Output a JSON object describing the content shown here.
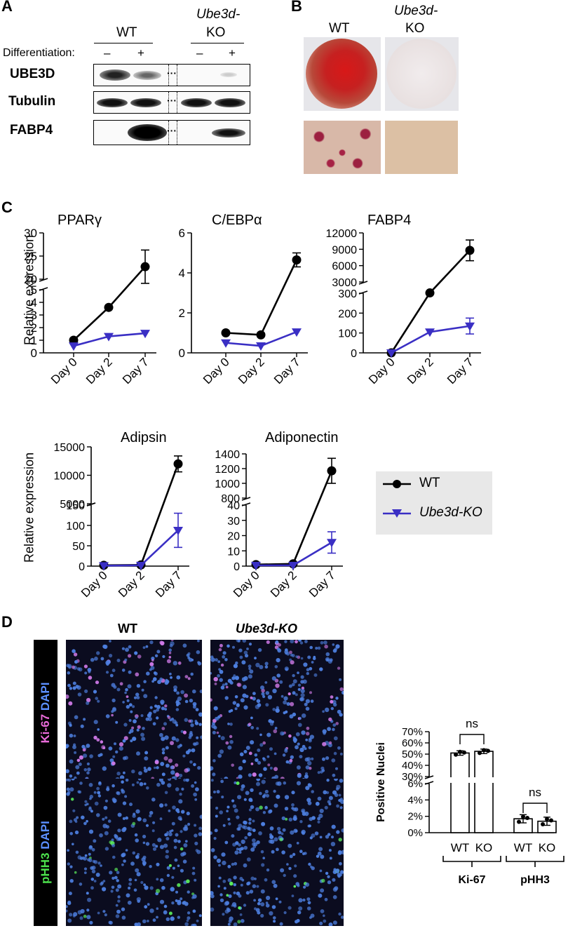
{
  "panels": {
    "a": "A",
    "b": "B",
    "c": "C",
    "d": "D"
  },
  "panelA": {
    "wt": "WT",
    "ko_line1": "Ube3d-",
    "ko_line2": "KO",
    "differentiation": "Differentiation:",
    "minus": "–",
    "plus": "+",
    "dots": "···",
    "rows": [
      "UBE3D",
      "Tubulin",
      "FABP4"
    ]
  },
  "panelB": {
    "wt": "WT",
    "ko_line1": "Ube3d-",
    "ko_line2": "KO"
  },
  "panelC": {
    "ylabel": "Relative expression",
    "x_ticks": [
      "Day 0",
      "Day 2",
      "Day 7"
    ],
    "legend": {
      "wt": "WT",
      "ko": "Ube3d-KO"
    },
    "colors": {
      "wt": "#000000",
      "ko": "#3a2fc4"
    }
  },
  "chart_data": [
    {
      "type": "line",
      "title": "PPARγ",
      "x": [
        "Day 0",
        "Day 2",
        "Day 7"
      ],
      "broken_y": true,
      "upper_ticks": [
        20,
        25,
        30
      ],
      "lower_ticks": [
        0,
        1,
        2,
        3,
        4,
        5
      ],
      "series": [
        {
          "name": "WT",
          "values": [
            1.0,
            3.6,
            22.7
          ],
          "err": [
            0,
            0,
            3.6
          ]
        },
        {
          "name": "Ube3d-KO",
          "values": [
            0.55,
            1.3,
            1.55
          ],
          "err": [
            0,
            0,
            0
          ]
        }
      ]
    },
    {
      "type": "line",
      "title": "C/EBPα",
      "x": [
        "Day 0",
        "Day 2",
        "Day 7"
      ],
      "broken_y": false,
      "ticks": [
        0,
        2,
        4,
        6
      ],
      "series": [
        {
          "name": "WT",
          "values": [
            1.0,
            0.9,
            4.65
          ],
          "err": [
            0,
            0,
            0.35
          ]
        },
        {
          "name": "Ube3d-KO",
          "values": [
            0.5,
            0.35,
            1.05
          ],
          "err": [
            0,
            0,
            0
          ]
        }
      ]
    },
    {
      "type": "line",
      "title": "FABP4",
      "x": [
        "Day 0",
        "Day 2",
        "Day 7"
      ],
      "broken_y": true,
      "upper_ticks": [
        3000,
        6000,
        9000,
        12000
      ],
      "lower_ticks": [
        0,
        100,
        200,
        300
      ],
      "series": [
        {
          "name": "WT",
          "values": [
            0,
            1000,
            8800
          ],
          "err": [
            0,
            0,
            1900
          ]
        },
        {
          "name": "Ube3d-KO",
          "values": [
            0,
            105,
            135
          ],
          "err": [
            0,
            0,
            40
          ]
        }
      ]
    },
    {
      "type": "line",
      "title": "Adipsin",
      "x": [
        "Day 0",
        "Day 2",
        "Day 7"
      ],
      "broken_y": true,
      "upper_ticks": [
        5000,
        10000,
        15000
      ],
      "lower_ticks": [
        0,
        50,
        100,
        150
      ],
      "series": [
        {
          "name": "WT",
          "values": [
            2,
            3,
            12000
          ],
          "err": [
            0,
            0,
            1400
          ]
        },
        {
          "name": "Ube3d-KO",
          "values": [
            1,
            2,
            88
          ],
          "err": [
            0,
            0,
            42
          ]
        }
      ]
    },
    {
      "type": "line",
      "title": "Adiponectin",
      "x": [
        "Day 0",
        "Day 2",
        "Day 7"
      ],
      "broken_y": true,
      "upper_ticks": [
        800,
        1000,
        1200,
        1400
      ],
      "lower_ticks": [
        0,
        10,
        20,
        30,
        40
      ],
      "series": [
        {
          "name": "WT",
          "values": [
            1,
            1.5,
            1170
          ],
          "err": [
            0,
            0,
            170
          ]
        },
        {
          "name": "Ube3d-KO",
          "values": [
            0.5,
            0.5,
            15.5
          ],
          "err": [
            0,
            0,
            7
          ]
        }
      ]
    },
    {
      "type": "bar",
      "title": "",
      "ylabel": "Positive Nuclei",
      "categories": [
        "WT",
        "KO",
        "WT",
        "KO"
      ],
      "groups": [
        "Ki-67",
        "pHH3"
      ],
      "broken_y": true,
      "upper_ticks": [
        "30%",
        "40%",
        "50%",
        "60%",
        "70%"
      ],
      "lower_ticks": [
        "0%",
        "2%",
        "4%",
        "6%"
      ],
      "values": [
        51,
        52.5,
        1.7,
        1.4
      ],
      "significance": [
        "ns",
        "ns"
      ]
    }
  ],
  "panelD": {
    "wt": "WT",
    "ko": "Ube3d-KO",
    "row1": {
      "marker": "Ki-67",
      "dapi": "DAPI",
      "marker_color": "#e86ad8",
      "dapi_color": "#5b8fff"
    },
    "row2": {
      "marker": "pHH3",
      "dapi": "DAPI",
      "marker_color": "#4ce04c",
      "dapi_color": "#5b8fff"
    }
  }
}
